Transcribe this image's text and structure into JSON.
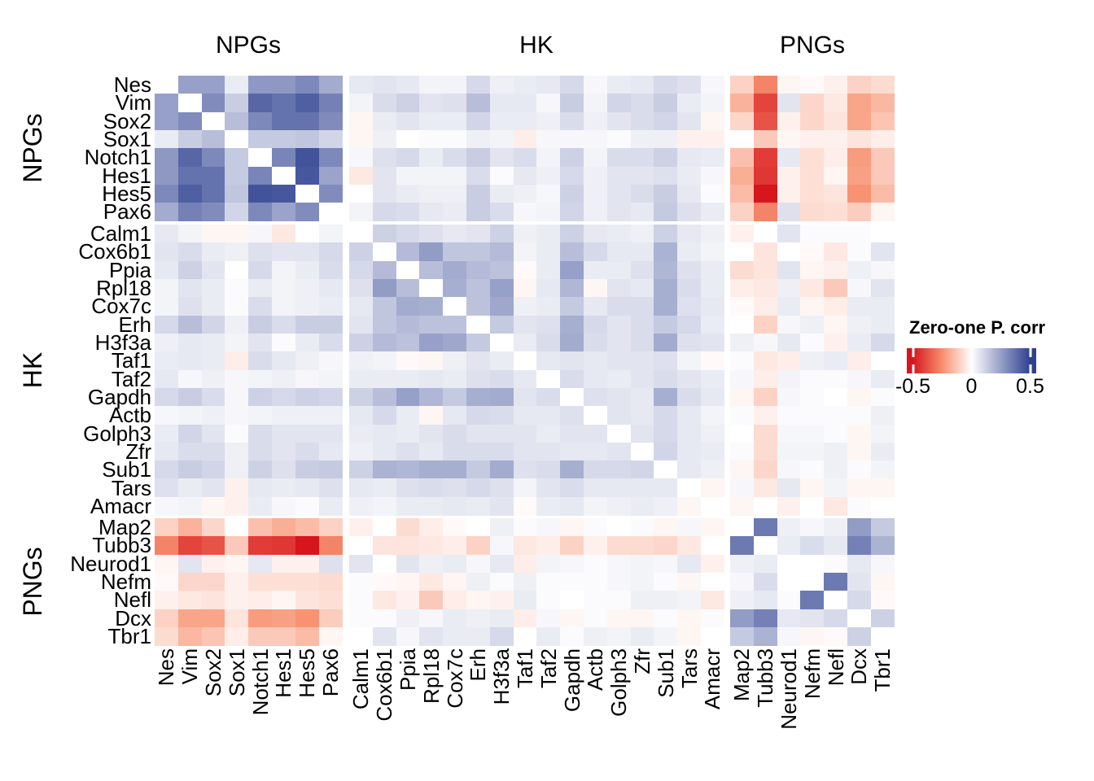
{
  "chart_data": {
    "type": "heatmap",
    "title": "",
    "legend": {
      "title": "Zero-one P. corr",
      "tick_labels": [
        "-0.5",
        "0",
        "0.5"
      ],
      "tick_values": [
        -0.5,
        0,
        0.5
      ],
      "domain": [
        -0.55,
        0.55
      ],
      "color_min": "#D6151D",
      "color_mid_neg": "#F78E6D",
      "color_zero": "#FFFFFF",
      "color_max": "#2E4090",
      "position": "right"
    },
    "groups": [
      {
        "label": "NPGs",
        "genes": [
          "Nes",
          "Vim",
          "Sox2",
          "Sox1",
          "Notch1",
          "Hes1",
          "Hes5",
          "Pax6"
        ]
      },
      {
        "label": "HK",
        "genes": [
          "Calm1",
          "Cox6b1",
          "Ppia",
          "Rpl18",
          "Cox7c",
          "Erh",
          "H3f3a",
          "Taf1",
          "Taf2",
          "Gapdh",
          "Actb",
          "Golph3",
          "Zfr",
          "Sub1",
          "Tars",
          "Amacr"
        ]
      },
      {
        "label": "PNGs",
        "genes": [
          "Map2",
          "Tubb3",
          "Neurod1",
          "Nefm",
          "Nefl",
          "Dcx",
          "Tbr1"
        ]
      }
    ],
    "matrix": [
      [
        0,
        0.25,
        0.25,
        0.05,
        0.27,
        0.27,
        0.31,
        0.22,
        0.06,
        0.07,
        0.06,
        0.03,
        0.03,
        0.1,
        0.04,
        0.05,
        0.06,
        0.1,
        0.02,
        0.05,
        0.06,
        0.1,
        0.08,
        0.02,
        -0.1,
        -0.27,
        -0.02,
        -0.01,
        -0.03,
        -0.1,
        -0.08
      ],
      [
        0.25,
        0,
        0.3,
        0.13,
        0.4,
        0.37,
        0.42,
        0.33,
        0.03,
        0.09,
        0.12,
        0.07,
        0.08,
        0.17,
        0.06,
        0.06,
        0.02,
        0.13,
        0.03,
        0.11,
        0.09,
        0.13,
        0.05,
        0.03,
        -0.17,
        -0.4,
        0.07,
        -0.09,
        -0.05,
        -0.2,
        -0.16
      ],
      [
        0.25,
        0.3,
        0,
        0.17,
        0.31,
        0.37,
        0.37,
        0.3,
        -0.02,
        0.05,
        0.07,
        0.05,
        0.05,
        0.11,
        0.05,
        0.05,
        0.04,
        0.09,
        0.04,
        0.07,
        0.09,
        0.11,
        0.07,
        -0.02,
        -0.09,
        -0.37,
        -0.03,
        -0.09,
        -0.06,
        -0.2,
        -0.13
      ],
      [
        0.05,
        0.13,
        0.17,
        0,
        0.14,
        0.14,
        0.15,
        0.11,
        -0.02,
        0.04,
        0.0,
        0.01,
        0.01,
        0.04,
        0.03,
        -0.04,
        0.02,
        0.02,
        0.02,
        0.01,
        0.04,
        0.04,
        -0.03,
        -0.03,
        0.0,
        -0.12,
        -0.02,
        -0.03,
        -0.03,
        -0.06,
        -0.04
      ],
      [
        0.27,
        0.4,
        0.31,
        0.14,
        0,
        0.32,
        0.45,
        0.31,
        0.02,
        0.08,
        0.1,
        0.05,
        0.09,
        0.13,
        0.07,
        0.09,
        0.03,
        0.12,
        0.03,
        0.09,
        0.09,
        0.12,
        0.06,
        0.05,
        -0.14,
        -0.42,
        0.06,
        -0.07,
        -0.04,
        -0.22,
        -0.12
      ],
      [
        0.27,
        0.37,
        0.37,
        0.14,
        0.32,
        0,
        0.44,
        0.24,
        -0.05,
        0.07,
        0.03,
        0.03,
        0.03,
        0.09,
        0.01,
        0.06,
        0.04,
        0.1,
        0.04,
        0.07,
        0.07,
        0.08,
        0.05,
        0.02,
        -0.18,
        -0.43,
        -0.03,
        -0.07,
        -0.02,
        -0.21,
        -0.12
      ],
      [
        0.31,
        0.42,
        0.37,
        0.15,
        0.45,
        0.44,
        0,
        0.3,
        0.0,
        0.07,
        0.05,
        0.04,
        0.04,
        0.13,
        0.05,
        0.04,
        0.02,
        0.12,
        0.04,
        0.07,
        0.09,
        0.13,
        0.06,
        0.01,
        -0.15,
        -0.5,
        -0.03,
        -0.07,
        -0.06,
        -0.24,
        -0.15
      ],
      [
        0.22,
        0.33,
        0.3,
        0.11,
        0.31,
        0.24,
        0.3,
        0,
        0.03,
        0.1,
        0.09,
        0.06,
        0.05,
        0.13,
        0.09,
        0.02,
        0.03,
        0.11,
        0.04,
        0.07,
        0.06,
        0.14,
        0.08,
        0.05,
        -0.1,
        -0.27,
        0.08,
        -0.08,
        -0.07,
        -0.11,
        -0.02
      ],
      [
        0.06,
        0.03,
        -0.02,
        -0.02,
        0.02,
        -0.05,
        0.0,
        0.03,
        0,
        0.12,
        0.1,
        0.08,
        0.06,
        0.07,
        0.12,
        0.04,
        0.05,
        0.12,
        0.06,
        0.05,
        0.04,
        0.12,
        0.06,
        0.04,
        -0.03,
        0.0,
        0.07,
        0.01,
        0.01,
        0.01,
        0.0
      ],
      [
        0.07,
        0.09,
        0.05,
        0.04,
        0.08,
        0.07,
        0.07,
        0.1,
        0.12,
        0,
        0.18,
        0.26,
        0.15,
        0.15,
        0.18,
        0.03,
        0.05,
        0.17,
        0.1,
        0.06,
        0.06,
        0.2,
        0.05,
        0.03,
        0.0,
        -0.06,
        0.0,
        -0.01,
        -0.05,
        0.01,
        0.07
      ],
      [
        0.06,
        0.12,
        0.07,
        0.0,
        0.1,
        0.03,
        0.05,
        0.09,
        0.1,
        0.18,
        0,
        0.17,
        0.22,
        0.18,
        0.16,
        -0.01,
        0.05,
        0.25,
        0.05,
        0.05,
        0.08,
        0.19,
        0.08,
        0.05,
        -0.08,
        -0.06,
        0.07,
        -0.02,
        -0.03,
        0.04,
        0.02
      ],
      [
        0.03,
        0.07,
        0.05,
        0.01,
        0.05,
        0.03,
        0.04,
        0.06,
        0.08,
        0.26,
        0.17,
        0,
        0.21,
        0.16,
        0.25,
        -0.02,
        0.06,
        0.19,
        -0.02,
        0.07,
        0.06,
        0.21,
        0.09,
        0.05,
        -0.04,
        -0.05,
        0.04,
        -0.05,
        -0.12,
        0.02,
        0.07
      ],
      [
        0.03,
        0.08,
        0.05,
        0.01,
        0.09,
        0.03,
        0.04,
        0.05,
        0.06,
        0.15,
        0.22,
        0.21,
        0,
        0.16,
        0.23,
        0.04,
        0.05,
        0.14,
        0.06,
        0.09,
        0.09,
        0.21,
        0.08,
        0.06,
        -0.01,
        -0.04,
        0.05,
        -0.02,
        -0.04,
        0.05,
        0.05
      ],
      [
        0.1,
        0.17,
        0.11,
        0.04,
        0.13,
        0.09,
        0.13,
        0.13,
        0.07,
        0.15,
        0.18,
        0.16,
        0.16,
        0,
        0.14,
        0.07,
        0.08,
        0.21,
        0.1,
        0.07,
        0.09,
        0.14,
        0.1,
        0.05,
        0.0,
        -0.1,
        0.02,
        0.04,
        -0.02,
        0.04,
        0.05
      ],
      [
        0.04,
        0.06,
        0.05,
        0.03,
        0.07,
        0.01,
        0.05,
        0.09,
        0.12,
        0.18,
        0.16,
        0.25,
        0.23,
        0.14,
        0,
        0.05,
        0.09,
        0.22,
        0.09,
        0.07,
        0.09,
        0.22,
        0.08,
        0.07,
        0.04,
        0.02,
        0.06,
        0.01,
        -0.03,
        0.05,
        0.1
      ],
      [
        0.05,
        0.06,
        0.05,
        -0.04,
        0.09,
        0.06,
        0.04,
        0.02,
        0.04,
        0.03,
        -0.01,
        -0.02,
        0.04,
        0.07,
        0.05,
        0,
        0.06,
        0.07,
        0.06,
        0.07,
        0.07,
        0.08,
        0.03,
        -0.01,
        0.01,
        -0.05,
        -0.04,
        0.04,
        0.05,
        -0.04,
        0.0
      ],
      [
        0.06,
        0.02,
        0.04,
        0.02,
        0.03,
        0.04,
        0.02,
        0.03,
        0.05,
        0.05,
        0.05,
        0.06,
        0.05,
        0.08,
        0.09,
        0.06,
        0,
        0.09,
        0.06,
        0.05,
        0.07,
        0.09,
        0.07,
        0.05,
        0.02,
        -0.04,
        0.03,
        0.01,
        0.01,
        0.02,
        0.05
      ],
      [
        0.1,
        0.13,
        0.09,
        0.02,
        0.12,
        0.1,
        0.12,
        0.11,
        0.12,
        0.17,
        0.25,
        0.19,
        0.14,
        0.21,
        0.22,
        0.07,
        0.09,
        0,
        0.08,
        0.07,
        0.06,
        0.21,
        0.09,
        0.06,
        -0.02,
        -0.1,
        0.02,
        0.01,
        0.0,
        -0.02,
        0.01
      ],
      [
        0.02,
        0.03,
        0.04,
        0.02,
        0.03,
        0.04,
        0.04,
        0.04,
        0.06,
        0.1,
        0.05,
        -0.02,
        0.06,
        0.1,
        0.09,
        0.06,
        0.06,
        0.08,
        0,
        0.07,
        0.06,
        0.1,
        0.06,
        0.03,
        0.01,
        -0.03,
        0.01,
        0.01,
        0.01,
        0.01,
        0.04
      ],
      [
        0.05,
        0.11,
        0.07,
        0.01,
        0.09,
        0.07,
        0.07,
        0.07,
        0.05,
        0.06,
        0.05,
        0.07,
        0.09,
        0.07,
        0.07,
        0.07,
        0.05,
        0.07,
        0.07,
        0,
        0.07,
        0.1,
        0.06,
        0.04,
        0.0,
        -0.08,
        0.02,
        0.02,
        0.01,
        -0.02,
        0.03
      ],
      [
        0.06,
        0.09,
        0.09,
        0.04,
        0.09,
        0.07,
        0.09,
        0.06,
        0.04,
        0.06,
        0.08,
        0.06,
        0.09,
        0.09,
        0.09,
        0.07,
        0.07,
        0.06,
        0.06,
        0.07,
        0,
        0.11,
        0.06,
        0.05,
        0.01,
        -0.08,
        0.03,
        0.03,
        0.04,
        -0.02,
        0.05
      ],
      [
        0.1,
        0.13,
        0.11,
        0.04,
        0.12,
        0.08,
        0.13,
        0.14,
        0.12,
        0.2,
        0.19,
        0.21,
        0.21,
        0.14,
        0.22,
        0.08,
        0.09,
        0.21,
        0.1,
        0.1,
        0.11,
        0,
        0.06,
        0.04,
        -0.02,
        -0.09,
        0.02,
        0.01,
        0.04,
        0.01,
        0.03
      ],
      [
        0.08,
        0.05,
        0.07,
        -0.03,
        0.06,
        0.05,
        0.06,
        0.08,
        0.06,
        0.05,
        0.08,
        0.09,
        0.08,
        0.1,
        0.08,
        0.03,
        0.07,
        0.09,
        0.06,
        0.06,
        0.06,
        0.06,
        0,
        -0.02,
        0.02,
        -0.05,
        0.06,
        -0.02,
        0.03,
        -0.02,
        -0.02
      ],
      [
        0.02,
        0.03,
        -0.02,
        -0.03,
        0.05,
        0.02,
        0.01,
        0.05,
        0.04,
        0.03,
        0.05,
        0.05,
        0.06,
        0.05,
        0.07,
        -0.01,
        0.05,
        0.06,
        0.03,
        0.04,
        0.05,
        0.04,
        -0.02,
        0,
        -0.02,
        0.0,
        -0.03,
        0.0,
        -0.05,
        0.01,
        0.0
      ],
      [
        -0.1,
        -0.17,
        -0.09,
        0.0,
        -0.14,
        -0.18,
        -0.15,
        -0.1,
        -0.03,
        0.0,
        -0.08,
        -0.04,
        -0.01,
        0.0,
        0.04,
        0.01,
        0.02,
        -0.02,
        0.01,
        0.0,
        0.01,
        -0.02,
        0.02,
        -0.02,
        0,
        0.35,
        0.04,
        0.02,
        0.04,
        0.26,
        0.14
      ],
      [
        -0.27,
        -0.4,
        -0.37,
        -0.12,
        -0.42,
        -0.43,
        -0.5,
        -0.27,
        0.0,
        -0.06,
        -0.06,
        -0.05,
        -0.04,
        -0.1,
        0.02,
        -0.05,
        -0.04,
        -0.1,
        -0.03,
        -0.08,
        -0.08,
        -0.09,
        -0.05,
        0.0,
        0.35,
        0,
        0.05,
        0.09,
        0.06,
        0.33,
        0.2
      ],
      [
        -0.02,
        0.07,
        -0.03,
        -0.02,
        0.06,
        -0.03,
        -0.03,
        0.08,
        0.07,
        0.0,
        0.07,
        0.04,
        0.05,
        0.02,
        0.06,
        -0.04,
        0.03,
        0.02,
        0.01,
        0.02,
        0.03,
        0.02,
        0.06,
        -0.03,
        0.04,
        0.05,
        0,
        0.0,
        0.01,
        0.06,
        0.02
      ],
      [
        -0.01,
        -0.09,
        -0.09,
        -0.03,
        -0.07,
        -0.07,
        -0.07,
        -0.08,
        0.01,
        -0.01,
        -0.02,
        -0.05,
        -0.02,
        0.04,
        0.01,
        0.04,
        0.01,
        0.01,
        0.01,
        0.02,
        0.03,
        0.01,
        -0.02,
        0.0,
        0.02,
        0.09,
        0.0,
        0,
        0.35,
        0.07,
        -0.02
      ],
      [
        -0.03,
        -0.05,
        -0.06,
        -0.03,
        -0.04,
        -0.02,
        -0.06,
        -0.07,
        0.01,
        -0.05,
        -0.03,
        -0.12,
        -0.04,
        -0.02,
        -0.03,
        0.05,
        0.01,
        0.0,
        0.01,
        0.01,
        0.04,
        0.04,
        0.03,
        -0.05,
        0.04,
        0.06,
        0.01,
        0.35,
        0,
        0.1,
        -0.01
      ],
      [
        -0.1,
        -0.2,
        -0.2,
        -0.06,
        -0.22,
        -0.21,
        -0.24,
        -0.11,
        0.01,
        0.01,
        0.04,
        0.02,
        0.05,
        0.04,
        0.05,
        -0.04,
        0.02,
        -0.02,
        0.01,
        -0.02,
        -0.02,
        0.01,
        -0.02,
        0.01,
        0.26,
        0.33,
        0.06,
        0.07,
        0.1,
        0,
        0.12
      ],
      [
        -0.08,
        -0.16,
        -0.13,
        -0.04,
        -0.12,
        -0.12,
        -0.15,
        -0.02,
        0.0,
        0.07,
        0.02,
        0.07,
        0.05,
        0.05,
        0.1,
        0.0,
        0.05,
        0.01,
        0.04,
        0.03,
        0.05,
        0.03,
        -0.02,
        0.0,
        0.14,
        0.2,
        0.02,
        -0.02,
        -0.01,
        0.12,
        0
      ]
    ]
  }
}
